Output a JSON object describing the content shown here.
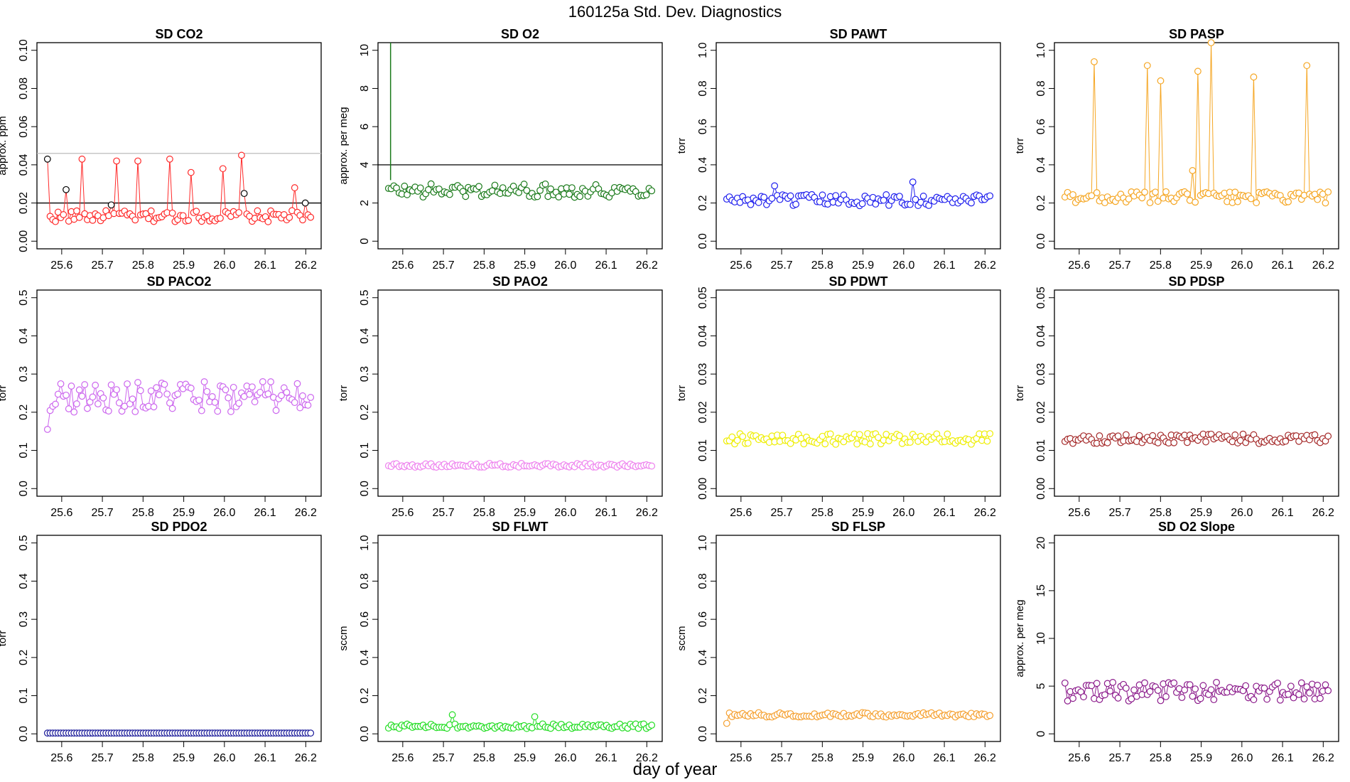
{
  "main_title": "160125a   Std. Dev. Diagnostics",
  "x_label": "day of year",
  "x_range": [
    25.565,
    26.212
  ],
  "x_ticks": [
    "25.6",
    "25.7",
    "25.8",
    "25.9",
    "26.0",
    "26.1",
    "26.2"
  ],
  "chart_data": [
    {
      "type": "scatter",
      "title": "SD CO2",
      "ylabel": "approx. ppm",
      "color": "#ff2a2a",
      "ylim": [
        0,
        0.1
      ],
      "yticks": [
        "0.00",
        "0.02",
        "0.04",
        "0.06",
        "0.08",
        "0.10"
      ],
      "hlines": [
        {
          "y": 0.02,
          "color": "#000000"
        },
        {
          "y": 0.046,
          "color": "#bbbbbb"
        }
      ],
      "base": 0.013,
      "jitter": 0.003,
      "spikes": [
        {
          "x": 25.565,
          "y": 0.043,
          "color": "#000000"
        },
        {
          "x": 25.61,
          "y": 0.027,
          "color": "#000000"
        },
        {
          "x": 25.652,
          "y": 0.043
        },
        {
          "x": 25.725,
          "y": 0.019,
          "color": "#000000"
        },
        {
          "x": 25.735,
          "y": 0.042
        },
        {
          "x": 25.785,
          "y": 0.042
        },
        {
          "x": 25.865,
          "y": 0.043
        },
        {
          "x": 25.915,
          "y": 0.036
        },
        {
          "x": 25.995,
          "y": 0.038
        },
        {
          "x": 26.045,
          "y": 0.045
        },
        {
          "x": 26.05,
          "y": 0.025,
          "color": "#000000"
        },
        {
          "x": 26.175,
          "y": 0.028
        },
        {
          "x": 26.2,
          "y": 0.02,
          "color": "#000000"
        }
      ]
    },
    {
      "type": "scatter",
      "title": "SD O2",
      "ylabel": "approx. per meg",
      "color": "#1a7a1a",
      "ylim": [
        0,
        10
      ],
      "yticks": [
        "0",
        "2",
        "4",
        "6",
        "8",
        "10"
      ],
      "hlines": [
        {
          "y": 4,
          "color": "#000000"
        }
      ],
      "vline": {
        "x": 25.57,
        "y0": 3.2,
        "y1": 11
      },
      "base": 2.65,
      "jitter": 0.35,
      "spikes": []
    },
    {
      "type": "scatter",
      "title": "SD PAWT",
      "ylabel": "torr",
      "color": "#2020ee",
      "ylim": [
        0,
        1.0
      ],
      "yticks": [
        "0.0",
        "0.2",
        "0.4",
        "0.6",
        "0.8",
        "1.0"
      ],
      "base": 0.215,
      "jitter": 0.03,
      "spikes": [
        {
          "x": 25.68,
          "y": 0.29
        },
        {
          "x": 26.02,
          "y": 0.31
        }
      ]
    },
    {
      "type": "scatter",
      "title": "SD PASP",
      "ylabel": "torr",
      "color": "#f5a623",
      "ylim": [
        0,
        1.0
      ],
      "yticks": [
        "0.0",
        "0.2",
        "0.4",
        "0.6",
        "0.8",
        "1.0"
      ],
      "base": 0.23,
      "jitter": 0.03,
      "spikes": [
        {
          "x": 25.637,
          "y": 0.94
        },
        {
          "x": 25.77,
          "y": 0.92
        },
        {
          "x": 25.8,
          "y": 0.84
        },
        {
          "x": 25.895,
          "y": 0.89
        },
        {
          "x": 25.925,
          "y": 1.04
        },
        {
          "x": 26.03,
          "y": 0.86
        },
        {
          "x": 26.16,
          "y": 0.92
        },
        {
          "x": 25.88,
          "y": 0.37
        }
      ]
    },
    {
      "type": "scatter",
      "title": "SD PACO2",
      "ylabel": "torr",
      "color": "#cc66ee",
      "ylim": [
        0,
        0.5
      ],
      "yticks": [
        "0.0",
        "0.1",
        "0.2",
        "0.3",
        "0.4",
        "0.5"
      ],
      "base": 0.24,
      "jitter": 0.04,
      "spikes": [
        {
          "x": 25.565,
          "y": 0.155
        }
      ]
    },
    {
      "type": "scatter",
      "title": "SD PAO2",
      "ylabel": "torr",
      "color": "#ee82ee",
      "ylim": [
        0,
        0.5
      ],
      "yticks": [
        "0.0",
        "0.1",
        "0.2",
        "0.3",
        "0.4",
        "0.5"
      ],
      "base": 0.061,
      "jitter": 0.005,
      "spikes": []
    },
    {
      "type": "scatter",
      "title": "SD PDWT",
      "ylabel": "torr",
      "color": "#eeee00",
      "ylim": [
        0,
        0.05
      ],
      "yticks": [
        "0.00",
        "0.01",
        "0.02",
        "0.03",
        "0.04",
        "0.05"
      ],
      "base": 0.013,
      "jitter": 0.0014,
      "spikes": []
    },
    {
      "type": "scatter",
      "title": "SD PDSP",
      "ylabel": "torr",
      "color": "#a52a2a",
      "ylim": [
        0,
        0.05
      ],
      "yticks": [
        "0.00",
        "0.01",
        "0.02",
        "0.03",
        "0.04",
        "0.05"
      ],
      "base": 0.013,
      "jitter": 0.0013,
      "spikes": []
    },
    {
      "type": "scatter",
      "title": "SD PDO2",
      "ylabel": "torr",
      "color": "#1a1a99",
      "ylim": [
        0,
        0.5
      ],
      "yticks": [
        "0.0",
        "0.1",
        "0.2",
        "0.3",
        "0.4",
        "0.5"
      ],
      "base": 0.002,
      "jitter": 0,
      "spikes": []
    },
    {
      "type": "scatter",
      "title": "SD FLWT",
      "ylabel": "sccm",
      "color": "#22dd22",
      "ylim": [
        0,
        1.0
      ],
      "yticks": [
        "0.0",
        "0.2",
        "0.4",
        "0.6",
        "0.8",
        "1.0"
      ],
      "base": 0.04,
      "jitter": 0.012,
      "spikes": [
        {
          "x": 25.72,
          "y": 0.1
        },
        {
          "x": 25.925,
          "y": 0.09
        }
      ]
    },
    {
      "type": "scatter",
      "title": "SD FLSP",
      "ylabel": "sccm",
      "color": "#f5a030",
      "ylim": [
        0,
        1.0
      ],
      "yticks": [
        "0.0",
        "0.2",
        "0.4",
        "0.6",
        "0.8",
        "1.0"
      ],
      "base": 0.1,
      "jitter": 0.012,
      "spikes": [
        {
          "x": 25.565,
          "y": 0.055
        }
      ]
    },
    {
      "type": "scatter",
      "title": "SD O2 Slope",
      "ylabel": "approx. per meg",
      "color": "#8b1a8b",
      "ylim": [
        0,
        20
      ],
      "yticks": [
        "0",
        "5",
        "10",
        "15",
        "20"
      ],
      "base": 4.4,
      "jitter": 1.0,
      "spikes": []
    }
  ]
}
